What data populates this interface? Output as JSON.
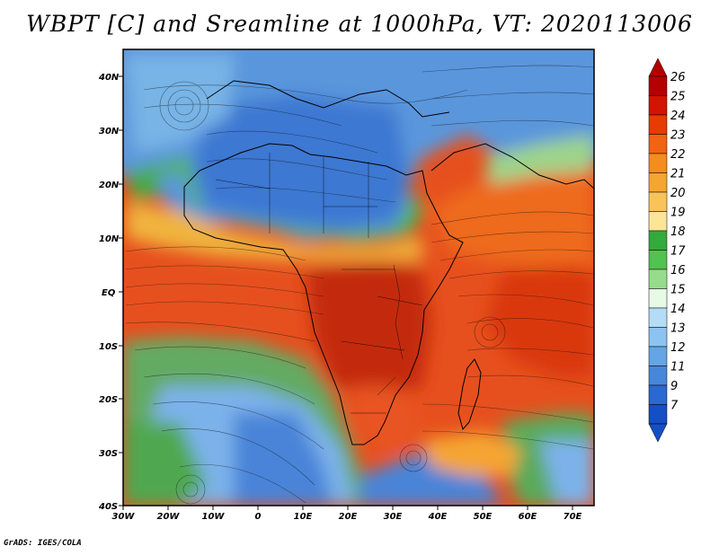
{
  "title": "WBPT [C] and Sreamline at 1000hPa, VT: 2020113006",
  "credit": "GrADS: IGES/COLA",
  "map": {
    "lat_labels": [
      "40N",
      "30N",
      "20N",
      "10N",
      "EQ",
      "10S",
      "20S",
      "30S",
      "40S"
    ],
    "lon_labels": [
      "30W",
      "20W",
      "10W",
      "0",
      "10E",
      "20E",
      "30E",
      "40E",
      "50E",
      "60E",
      "70E"
    ],
    "lat_range": [
      -40,
      45
    ],
    "lon_range": [
      -30,
      75
    ],
    "variable": "Wet-bulb potential temperature (C) with 1000hPa streamlines"
  },
  "colorbar": {
    "labels": [
      "26",
      "25",
      "24",
      "23",
      "22",
      "21",
      "20",
      "19",
      "18",
      "17",
      "16",
      "15",
      "14",
      "13",
      "12",
      "11",
      "9",
      "7"
    ],
    "colors": [
      "#b40000",
      "#d21400",
      "#e63c00",
      "#f06414",
      "#f58c1e",
      "#f5a532",
      "#fac35a",
      "#fae696",
      "#32aa3c",
      "#50c350",
      "#96dc8c",
      "#e6fae6",
      "#b4dcf5",
      "#8cc3f0",
      "#64a5e6",
      "#4687dc",
      "#2869d2",
      "#1450c3"
    ]
  }
}
